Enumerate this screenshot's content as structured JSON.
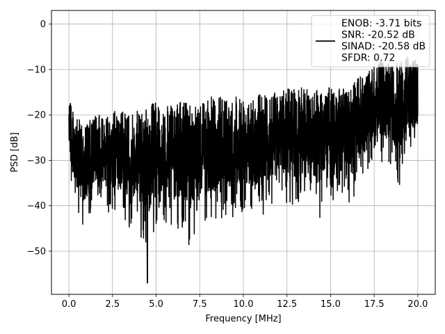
{
  "chart_data": {
    "type": "line",
    "xlabel": "Frequency [MHz]",
    "ylabel": "PSD [dB]",
    "xlim": [
      -1.0,
      21.0
    ],
    "ylim": [
      -59.5,
      3.0
    ],
    "x_ticks": [
      0.0,
      2.5,
      5.0,
      7.5,
      10.0,
      12.5,
      15.0,
      17.5,
      20.0
    ],
    "x_tick_labels": [
      "0.0",
      "2.5",
      "5.0",
      "7.5",
      "10.0",
      "12.5",
      "15.0",
      "17.5",
      "20.0"
    ],
    "y_ticks": [
      0,
      -10,
      -20,
      -30,
      -40,
      -50
    ],
    "y_tick_labels": [
      "0",
      "−10",
      "−20",
      "−30",
      "−40",
      "−50"
    ],
    "grid": true,
    "legend_position": "top-right",
    "series": [
      {
        "name": "ENOB: -3.71 bits\nSNR: -20.52 dB\nSINAD: -20.58 dB\nSFDR: 0.72",
        "color": "#000000",
        "x": [
          0.0,
          0.1,
          0.2,
          0.4,
          0.6,
          1.0,
          1.5,
          2.0,
          2.5,
          3.0,
          3.5,
          4.0,
          4.5,
          5.0,
          5.5,
          6.0,
          6.5,
          7.0,
          7.5,
          8.0,
          8.5,
          9.0,
          9.5,
          10.0,
          10.5,
          11.0,
          11.5,
          12.0,
          12.5,
          13.0,
          13.5,
          14.0,
          14.5,
          15.0,
          15.5,
          16.0,
          16.5,
          17.0,
          17.5,
          18.0,
          18.5,
          19.0,
          19.5,
          20.0
        ],
        "y_upper": [
          -11,
          -15,
          -18,
          -21,
          -21,
          -22,
          -20,
          -20,
          -19,
          -19,
          -20,
          -19,
          -18,
          -17,
          -18,
          -18,
          -17,
          -17,
          -17,
          -16,
          -16,
          -16,
          -15,
          -16,
          -15,
          -15,
          -15,
          -15,
          -14,
          -14,
          -14,
          -14,
          -14,
          -14,
          -14,
          -14,
          -12,
          -11,
          -9,
          -8,
          -9,
          -8,
          -7,
          -7
        ],
        "y_lower": [
          -30,
          -37,
          -38,
          -40,
          -44,
          -45,
          -40,
          -41,
          -42,
          -44,
          -45,
          -46,
          -51,
          -45,
          -45,
          -45,
          -46,
          -50,
          -45,
          -44,
          -44,
          -42,
          -44,
          -41,
          -41,
          -45,
          -41,
          -39,
          -40,
          -41,
          -39,
          -40,
          -44,
          -41,
          -40,
          -40,
          -37,
          -35,
          -30,
          -31,
          -31,
          -38,
          -29,
          -28
        ],
        "y_min": -57,
        "x_min": 4.5
      }
    ]
  }
}
